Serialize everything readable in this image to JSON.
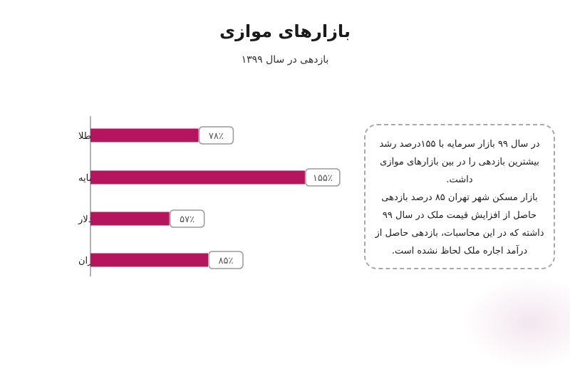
{
  "header": {
    "title": "بازارهای موازی",
    "subtitle": "بازدهی در سال ۱۳۹۹"
  },
  "chart_data": {
    "type": "bar",
    "orientation": "horizontal",
    "categories": [
      "طلا",
      "بازار سرمایه",
      "دلار",
      "بازار مسکن شهر تهران"
    ],
    "values": [
      78,
      155,
      57,
      85
    ],
    "value_labels": [
      "۷۸٪",
      "۱۵۵٪",
      "۵۷٪",
      "۸۵٪"
    ],
    "xlim": [
      0,
      170
    ],
    "grid": false,
    "bar_color": "#b5155c",
    "axis_color": "#9a9a9a",
    "label_border_color": "#9a9a9a"
  },
  "note": {
    "paragraphs": [
      "در سال ۹۹ بازار سرمایه با ۱۵۵درصد رشد بیشترین بازدهی را در بین بازارهای موازی داشت.",
      "بازار مسکن شهر تهران ۸۵ درصد بازدهی حاصل از افزایش قیمت ملک در سال ۹۹ داشته که در این محاسبات، بازدهی حاصل از درآمد اجاره ملک لحاظ نشده است."
    ]
  }
}
